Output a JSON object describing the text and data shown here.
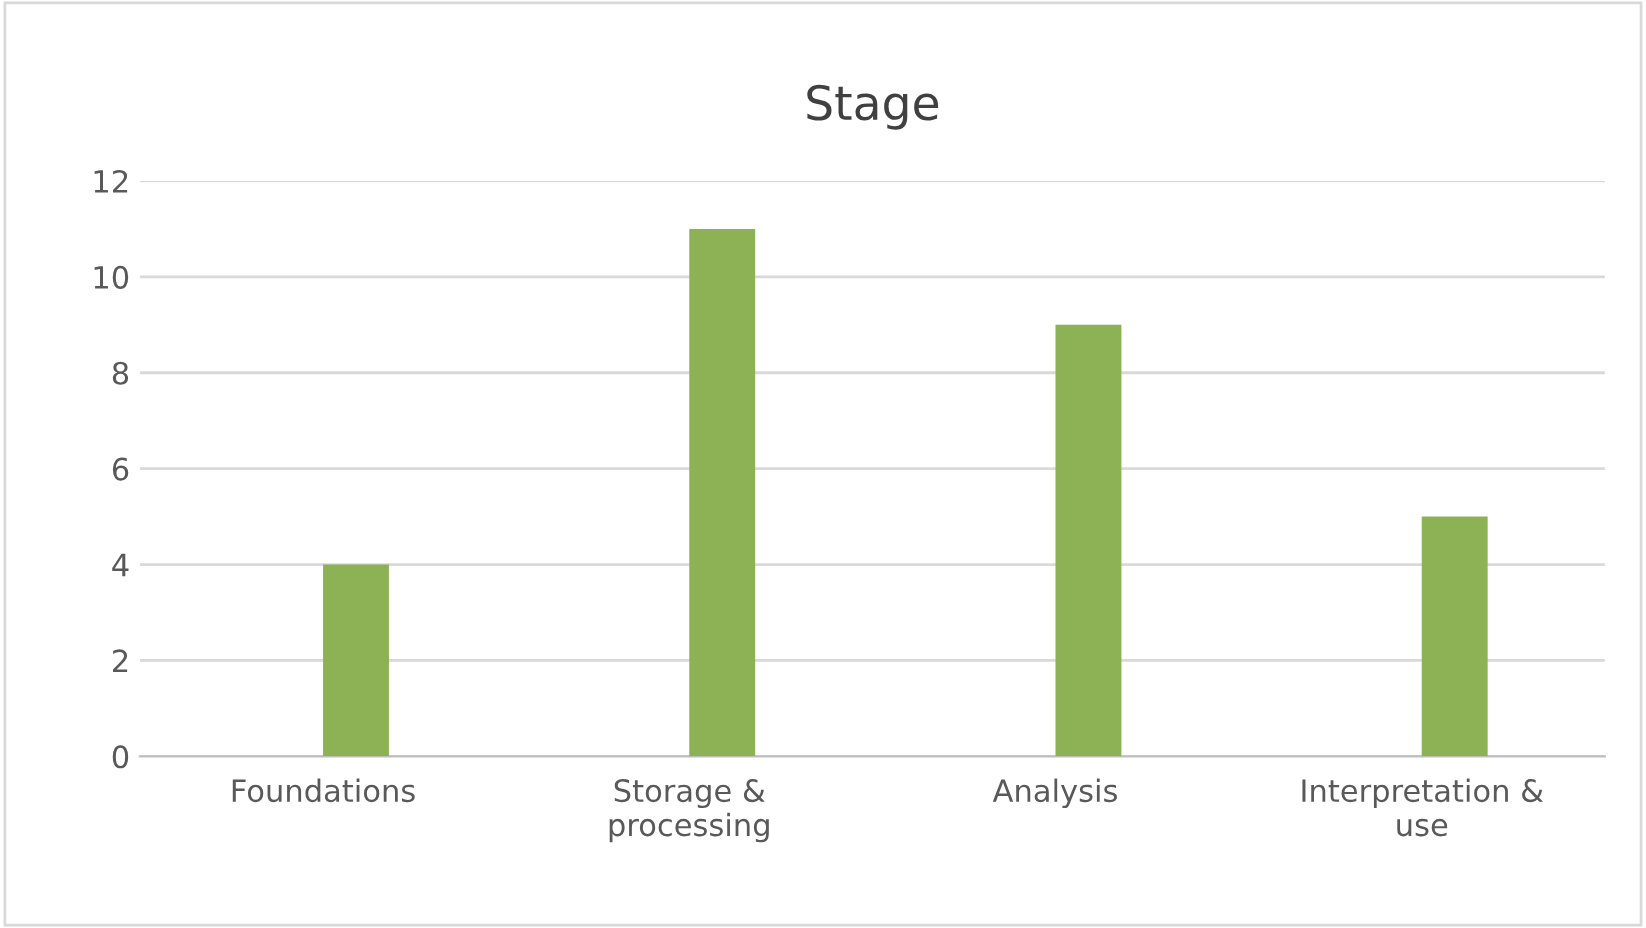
{
  "chart_data": {
    "type": "bar",
    "title": "Stage",
    "categories": [
      "Foundations",
      "Storage &\nprocessing",
      "Analysis",
      "Interpretation &\nuse"
    ],
    "series": [
      {
        "color": "#8db255",
        "values": [
          null,
          null,
          null,
          null
        ]
      },
      {
        "color": "#8db255",
        "values": [
          4,
          11,
          9,
          5
        ]
      }
    ],
    "ylim": [
      0,
      12
    ],
    "yticks": [
      0,
      2,
      4,
      6,
      8,
      10,
      12
    ],
    "grid": "y",
    "legend": false
  }
}
